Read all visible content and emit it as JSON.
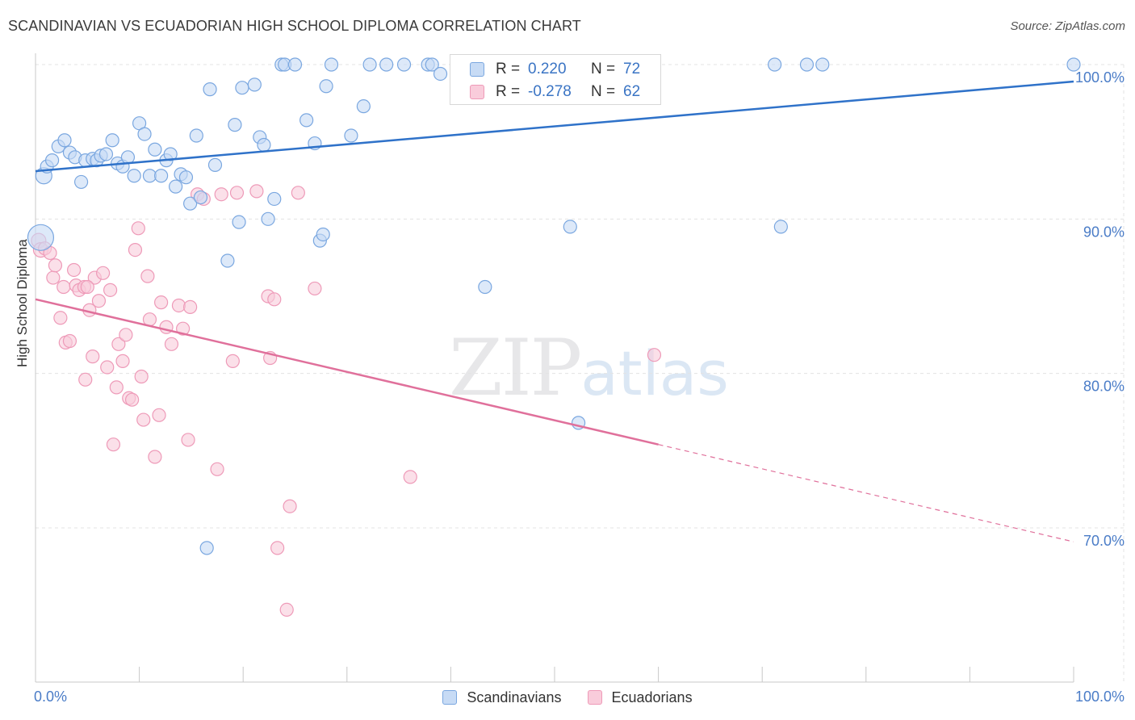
{
  "header": {
    "title": "SCANDINAVIAN VS ECUADORIAN HIGH SCHOOL DIPLOMA CORRELATION CHART",
    "source": "Source: ZipAtlas.com"
  },
  "watermark": {
    "zip": "ZIP",
    "atlas": "atlas"
  },
  "legend": {
    "rows": [
      {
        "r_label": "R =",
        "r_value": "0.220",
        "n_label": "N =",
        "n_value": "72"
      },
      {
        "r_label": "R =",
        "r_value": "-0.278",
        "n_label": "N =",
        "n_value": "62"
      }
    ]
  },
  "bottom_legend": {
    "items": [
      "Scandinavians",
      "Ecuadorians"
    ]
  },
  "colors": {
    "blue_fill": "#c7dbf5",
    "blue_stroke": "#7aa7e0",
    "blue_line": "#2f72c9",
    "blue_text": "#3a74c4",
    "pink_fill": "#f9ccdb",
    "pink_stroke": "#ee9ab8",
    "pink_line": "#e0709b",
    "grid": "#e3e3e3",
    "axis_text": "#4a7cc7"
  },
  "chart_data": {
    "type": "scatter",
    "title": "SCANDINAVIAN VS ECUADORIAN HIGH SCHOOL DIPLOMA CORRELATION CHART",
    "xlabel": "",
    "ylabel": "High School Diploma",
    "xlim": [
      0,
      100
    ],
    "ylim": [
      60,
      100
    ],
    "x_tick_labels": [
      "0.0%",
      "100.0%"
    ],
    "y_ticks": [
      70,
      80,
      90,
      100
    ],
    "y_tick_labels": [
      "70.0%",
      "80.0%",
      "90.0%",
      "100.0%"
    ],
    "grid": true,
    "legend_position": "top-center",
    "series": [
      {
        "name": "Scandinavians",
        "r": 0.22,
        "n": 72,
        "trend": {
          "x0": 0,
          "y0": 93.1,
          "x1": 100,
          "y1": 98.9
        },
        "points": [
          [
            0.5,
            88.8,
            16
          ],
          [
            0.8,
            92.8,
            10
          ],
          [
            1.1,
            93.4,
            8
          ],
          [
            1.6,
            93.8,
            8
          ],
          [
            2.2,
            94.7,
            8
          ],
          [
            2.8,
            95.1,
            8
          ],
          [
            3.3,
            94.3,
            8
          ],
          [
            3.8,
            94.0,
            8
          ],
          [
            4.4,
            92.4,
            8
          ],
          [
            4.8,
            93.8,
            8
          ],
          [
            5.5,
            93.9,
            8
          ],
          [
            5.9,
            93.8,
            8
          ],
          [
            6.3,
            94.1,
            8
          ],
          [
            6.8,
            94.2,
            8
          ],
          [
            7.4,
            95.1,
            8
          ],
          [
            7.9,
            93.6,
            8
          ],
          [
            8.4,
            93.4,
            8
          ],
          [
            8.9,
            94.0,
            8
          ],
          [
            9.5,
            92.8,
            8
          ],
          [
            10.0,
            96.2,
            8
          ],
          [
            10.5,
            95.5,
            8
          ],
          [
            11.0,
            92.8,
            8
          ],
          [
            11.5,
            94.5,
            8
          ],
          [
            12.1,
            92.8,
            8
          ],
          [
            12.6,
            93.8,
            8
          ],
          [
            13.0,
            94.2,
            8
          ],
          [
            13.5,
            92.1,
            8
          ],
          [
            14.0,
            92.9,
            8
          ],
          [
            14.5,
            92.7,
            8
          ],
          [
            14.9,
            91.0,
            8
          ],
          [
            15.5,
            95.4,
            8
          ],
          [
            15.9,
            91.4,
            8
          ],
          [
            16.5,
            68.7,
            8
          ],
          [
            16.8,
            98.4,
            8
          ],
          [
            17.3,
            93.5,
            8
          ],
          [
            18.5,
            87.3,
            8
          ],
          [
            19.2,
            96.1,
            8
          ],
          [
            19.6,
            89.8,
            8
          ],
          [
            19.9,
            98.5,
            8
          ],
          [
            21.1,
            98.7,
            8
          ],
          [
            21.6,
            95.3,
            8
          ],
          [
            22.0,
            94.8,
            8
          ],
          [
            22.4,
            90.0,
            8
          ],
          [
            23.0,
            91.3,
            8
          ],
          [
            23.7,
            100.0,
            8
          ],
          [
            24.0,
            100.0,
            8
          ],
          [
            25.0,
            100.0,
            8
          ],
          [
            26.1,
            96.4,
            8
          ],
          [
            26.9,
            94.9,
            8
          ],
          [
            27.4,
            88.6,
            8
          ],
          [
            27.7,
            89.0,
            8
          ],
          [
            28.0,
            98.6,
            8
          ],
          [
            28.5,
            100.0,
            8
          ],
          [
            30.4,
            95.4,
            8
          ],
          [
            31.6,
            97.3,
            8
          ],
          [
            32.2,
            100.0,
            8
          ],
          [
            33.8,
            100.0,
            8
          ],
          [
            35.5,
            100.0,
            8
          ],
          [
            37.8,
            100.0,
            8
          ],
          [
            38.2,
            100.0,
            8
          ],
          [
            39.0,
            99.4,
            8
          ],
          [
            42.3,
            100.0,
            8
          ],
          [
            43.3,
            85.6,
            8
          ],
          [
            47.6,
            100.0,
            8
          ],
          [
            48.5,
            100.0,
            8
          ],
          [
            52.3,
            76.8,
            8
          ],
          [
            51.5,
            89.5,
            8
          ],
          [
            71.2,
            100.0,
            8
          ],
          [
            74.3,
            100.0,
            8
          ],
          [
            71.8,
            89.5,
            8
          ],
          [
            75.8,
            100.0,
            8
          ],
          [
            100.0,
            100.0,
            8
          ]
        ]
      },
      {
        "name": "Ecuadorians",
        "r": -0.278,
        "n": 62,
        "trend": {
          "x0": 0,
          "y0": 84.8,
          "x1": 60,
          "y1": 75.4,
          "dash_x1": 100,
          "dash_y1": 69.1
        },
        "points": [
          [
            0.3,
            88.6,
            9
          ],
          [
            0.5,
            88.0,
            9
          ],
          [
            0.9,
            88.1,
            8
          ],
          [
            1.4,
            87.8,
            8
          ],
          [
            1.7,
            86.2,
            8
          ],
          [
            1.9,
            87.0,
            8
          ],
          [
            2.4,
            83.6,
            8
          ],
          [
            2.7,
            85.6,
            8
          ],
          [
            2.9,
            82.0,
            8
          ],
          [
            3.3,
            82.1,
            8
          ],
          [
            3.7,
            86.7,
            8
          ],
          [
            3.9,
            85.7,
            8
          ],
          [
            4.2,
            85.4,
            8
          ],
          [
            4.7,
            85.6,
            8
          ],
          [
            4.8,
            79.6,
            8
          ],
          [
            5.2,
            84.1,
            8
          ],
          [
            5.5,
            81.1,
            8
          ],
          [
            5.7,
            86.2,
            8
          ],
          [
            6.1,
            84.7,
            8
          ],
          [
            6.5,
            86.5,
            8
          ],
          [
            6.9,
            80.4,
            8
          ],
          [
            7.2,
            85.4,
            8
          ],
          [
            7.5,
            75.4,
            8
          ],
          [
            7.8,
            79.1,
            8
          ],
          [
            8.0,
            81.9,
            8
          ],
          [
            8.4,
            80.8,
            8
          ],
          [
            8.7,
            82.5,
            8
          ],
          [
            9.0,
            78.4,
            8
          ],
          [
            9.3,
            78.3,
            8
          ],
          [
            9.6,
            88.0,
            8
          ],
          [
            9.9,
            89.4,
            8
          ],
          [
            10.2,
            79.8,
            8
          ],
          [
            10.4,
            77.0,
            8
          ],
          [
            10.8,
            86.3,
            8
          ],
          [
            11.0,
            83.5,
            8
          ],
          [
            11.5,
            74.6,
            8
          ],
          [
            11.9,
            77.3,
            8
          ],
          [
            12.1,
            84.6,
            8
          ],
          [
            12.6,
            83.0,
            8
          ],
          [
            13.1,
            81.9,
            8
          ],
          [
            13.8,
            84.4,
            8
          ],
          [
            14.2,
            82.9,
            8
          ],
          [
            14.7,
            75.7,
            8
          ],
          [
            14.9,
            84.3,
            8
          ],
          [
            15.6,
            91.6,
            8
          ],
          [
            16.2,
            91.3,
            8
          ],
          [
            17.5,
            73.8,
            8
          ],
          [
            17.9,
            91.6,
            8
          ],
          [
            19.0,
            80.8,
            8
          ],
          [
            19.4,
            91.7,
            8
          ],
          [
            21.3,
            91.8,
            8
          ],
          [
            22.4,
            85.0,
            8
          ],
          [
            22.6,
            81.0,
            8
          ],
          [
            23.0,
            84.8,
            8
          ],
          [
            23.3,
            68.7,
            8
          ],
          [
            24.2,
            64.7,
            8
          ],
          [
            24.5,
            71.4,
            8
          ],
          [
            25.3,
            91.7,
            8
          ],
          [
            26.9,
            85.5,
            8
          ],
          [
            36.1,
            73.3,
            8
          ],
          [
            59.6,
            81.2,
            8
          ],
          [
            5.0,
            85.6,
            8
          ]
        ]
      }
    ]
  }
}
